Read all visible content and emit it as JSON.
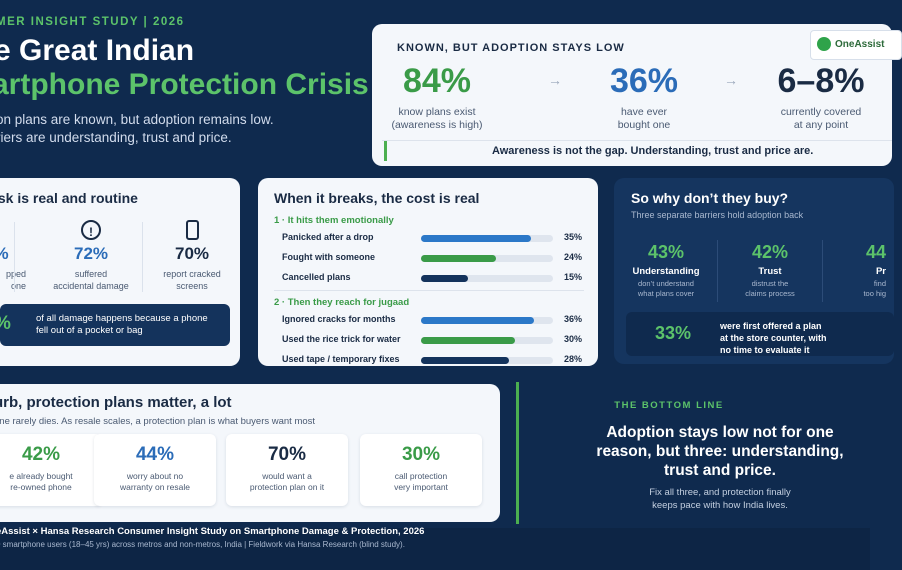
{
  "header": {
    "kicker": "MER INSIGHT STUDY | 2026",
    "title_line1": "e Great Indian",
    "title_line2": "artphone Protection Crisis",
    "subtitle_line1": "on plans are known, but adoption remains low.",
    "subtitle_line2": "riers are understanding, trust and price."
  },
  "known": {
    "heading": "KNOWN, BUT ADOPTION STAYS LOW",
    "logo_text": "OneAssist",
    "stats": [
      {
        "value": "84%",
        "line1": "know plans exist",
        "line2": "(awareness is high)",
        "color": "#3a9b48"
      },
      {
        "value": "36%",
        "line1": "have ever",
        "line2": "bought one",
        "color": "#2b6cb8"
      },
      {
        "value": "6–8%",
        "line1": "currently covered",
        "line2": "at any point",
        "color": "#1a2b44"
      }
    ],
    "arrow": "→",
    "banner": "Awareness is not the gap. Understanding, trust and price are."
  },
  "risk": {
    "heading": "isk is real and routine",
    "stats": [
      {
        "value": "%",
        "line1": "pped",
        "line2": "one"
      },
      {
        "value": "72%",
        "line1": "suffered",
        "line2": "accidental damage",
        "icon": "!"
      },
      {
        "value": "70%",
        "line1": "report cracked",
        "line2": "screens"
      }
    ],
    "band_value": "%",
    "band_line1": "of all damage happens because a phone",
    "band_line2": "fell out of a pocket or bag"
  },
  "breaks": {
    "heading": "When it breaks, the cost is real",
    "section1": "1 · It hits them emotionally",
    "section2": "2 · Then they reach for jugaad",
    "rows1": [
      {
        "label": "Panicked after a drop",
        "value": 35,
        "display": "35%",
        "color": "#2b78c8"
      },
      {
        "label": "Fought with someone",
        "value": 24,
        "display": "24%",
        "color": "#3a9b48"
      },
      {
        "label": "Cancelled plans",
        "value": 15,
        "display": "15%",
        "color": "#14335c"
      }
    ],
    "rows2": [
      {
        "label": "Ignored cracks for months",
        "value": 36,
        "display": "36%",
        "color": "#2b78c8"
      },
      {
        "label": "Used the rice trick for water",
        "value": 30,
        "display": "30%",
        "color": "#3a9b48"
      },
      {
        "label": "Used tape / temporary fixes",
        "value": 28,
        "display": "28%",
        "color": "#14335c"
      }
    ],
    "scale_max": 42
  },
  "why": {
    "heading": "So why don’t they buy?",
    "subtitle": "Three separate barriers hold adoption back",
    "cols": [
      {
        "value": "43%",
        "title": "Understanding",
        "line1": "don’t understand",
        "line2": "what plans cover"
      },
      {
        "value": "42%",
        "title": "Trust",
        "line1": "distrust the",
        "line2": "claims process"
      },
      {
        "value": "44",
        "title": "Pr",
        "line1": "find",
        "line2": "too hig"
      }
    ],
    "band_value": "33%",
    "band_line1": "were first offered a plan",
    "band_line2": "at the store counter, with",
    "band_line3": "no time to evaluate it"
  },
  "curb": {
    "heading": "urb, protection plans matter, a lot",
    "subtitle": "one rarely dies. As resale scales, a protection plan is what buyers want most",
    "tiles": [
      {
        "value": "42%",
        "line1": "e already bought",
        "line2": "re-owned phone",
        "color": "#3a9b48"
      },
      {
        "value": "44%",
        "line1": "worry about no",
        "line2": "warranty on resale",
        "color": "#2b6cb8"
      },
      {
        "value": "70%",
        "line1": "would want a",
        "line2": "protection plan on it",
        "color": "#1a2b44"
      },
      {
        "value": "30%",
        "line1": "call protection",
        "line2": "very important",
        "color": "#3a9b48"
      }
    ]
  },
  "bottom_line": {
    "kicker": "THE BOTTOM LINE",
    "headline_line1": "Adoption stays low not for one",
    "headline_line2": "reason, but three: understanding,",
    "headline_line3": "trust and price.",
    "sub_line1": "Fix all three, and protection finally",
    "sub_line2": "keeps pace with how India lives."
  },
  "footer": {
    "line1": "eAssist × Hansa Research Consumer Insight Study on Smartphone Damage & Protection, 2026",
    "line2": "0 smartphone users (18–45 yrs) across metros and non-metros, India | Fieldwork via Hansa Research (blind study)."
  }
}
